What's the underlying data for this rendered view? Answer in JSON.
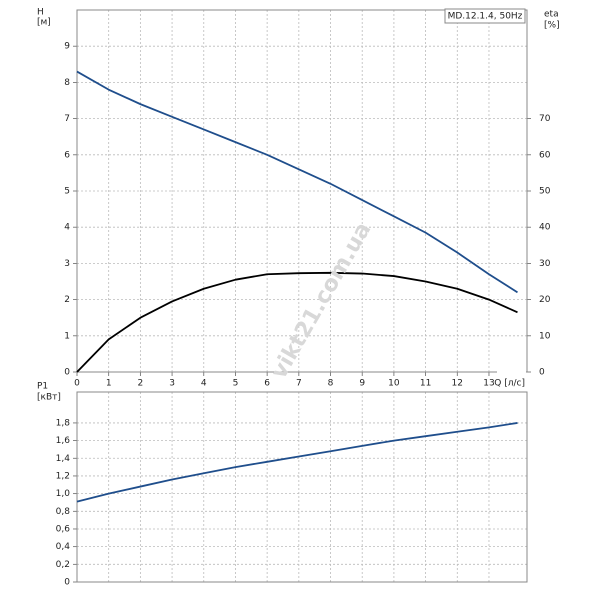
{
  "chart_data": [
    {
      "type": "line",
      "y_label": "H",
      "y_unit": "[м]",
      "y2_label": "eta",
      "y2_unit": "[%]",
      "legend_text": "MD.12.1.4, 50Hz",
      "x_label": "Q [л/с]",
      "watermark": "vikt21.com.ua",
      "x": [
        0,
        1,
        2,
        3,
        4,
        5,
        6,
        7,
        8,
        9,
        10,
        11,
        12,
        13,
        13.9
      ],
      "xlim": [
        0,
        14.2
      ],
      "xticks": [
        0,
        1,
        2,
        3,
        4,
        5,
        6,
        7,
        8,
        9,
        10,
        11,
        12,
        13
      ],
      "ylim": [
        0,
        10
      ],
      "yticks": [
        0,
        1,
        2,
        3,
        4,
        5,
        6,
        7,
        8,
        9
      ],
      "y2lim": [
        0,
        100
      ],
      "y2ticks": [
        0,
        10,
        20,
        30,
        40,
        50,
        60,
        70
      ],
      "grid": true,
      "series": [
        {
          "color": "#1f4e8c",
          "values": [
            8.3,
            7.8,
            7.4,
            7.05,
            6.7,
            6.35,
            6.0,
            5.6,
            5.2,
            4.75,
            4.3,
            3.85,
            3.3,
            2.7,
            2.2
          ]
        },
        {
          "color": "#000000",
          "axis": "y2",
          "values": [
            0,
            9,
            15,
            19.5,
            23,
            25.5,
            27,
            27.3,
            27.4,
            27.2,
            26.5,
            25,
            23,
            20,
            16.5
          ]
        }
      ]
    },
    {
      "type": "line",
      "y_label": "P1",
      "y_unit": "[кВт]",
      "x": [
        0,
        1,
        2,
        3,
        4,
        5,
        6,
        7,
        8,
        9,
        10,
        11,
        12,
        13,
        13.9
      ],
      "xlim": [
        0,
        14.2
      ],
      "ylim": [
        0,
        2.15
      ],
      "yticks": [
        0,
        {
          "value": 0.2,
          "label": "0,2"
        },
        {
          "value": 0.4,
          "label": "0,4"
        },
        {
          "value": 0.6,
          "label": "0,6"
        },
        {
          "value": 0.8,
          "label": "0,8"
        },
        {
          "value": 1.0,
          "label": "1,0"
        },
        {
          "value": 1.2,
          "label": "1,2"
        },
        {
          "value": 1.4,
          "label": "1,4"
        },
        {
          "value": 1.6,
          "label": "1,6"
        },
        {
          "value": 1.8,
          "label": "1,8"
        }
      ],
      "grid": true,
      "series": [
        {
          "color": "#1f4e8c",
          "values": [
            0.91,
            1.0,
            1.08,
            1.16,
            1.23,
            1.3,
            1.36,
            1.42,
            1.48,
            1.54,
            1.6,
            1.65,
            1.7,
            1.75,
            1.8
          ]
        }
      ]
    }
  ]
}
